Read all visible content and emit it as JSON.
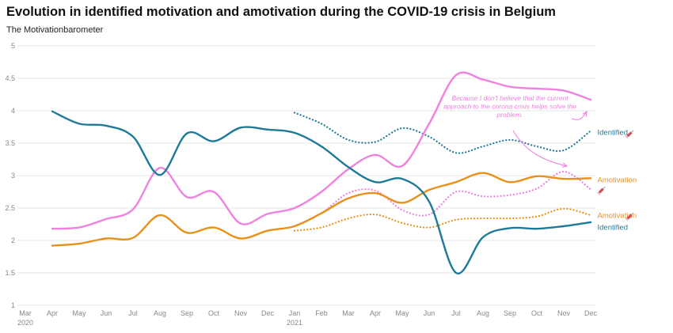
{
  "chart_data": {
    "type": "line",
    "title": "Evolution in identified motivation and amotivation during the COVID-19 crisis in Belgium",
    "subtitle": "The Motivationbarometer",
    "ylim": [
      1,
      5
    ],
    "yticks": [
      1,
      1.5,
      2,
      2.5,
      3,
      3.5,
      4,
      4.5,
      5
    ],
    "grid": true,
    "x_ticks": [
      {
        "x": 0,
        "label": "Mar",
        "sub": "2020"
      },
      {
        "x": 1,
        "label": "Apr",
        "sub": ""
      },
      {
        "x": 2,
        "label": "May",
        "sub": ""
      },
      {
        "x": 3,
        "label": "Jun",
        "sub": ""
      },
      {
        "x": 4,
        "label": "Jul",
        "sub": ""
      },
      {
        "x": 5,
        "label": "Aug",
        "sub": ""
      },
      {
        "x": 6,
        "label": "Sep",
        "sub": ""
      },
      {
        "x": 7,
        "label": "Oct",
        "sub": ""
      },
      {
        "x": 8,
        "label": "Nov",
        "sub": ""
      },
      {
        "x": 9,
        "label": "Dec",
        "sub": ""
      },
      {
        "x": 10,
        "label": "Jan",
        "sub": "2021"
      },
      {
        "x": 11,
        "label": "Feb",
        "sub": ""
      },
      {
        "x": 12,
        "label": "Mar",
        "sub": ""
      },
      {
        "x": 13,
        "label": "Apr",
        "sub": ""
      },
      {
        "x": 14,
        "label": "May",
        "sub": ""
      },
      {
        "x": 15,
        "label": "Jun",
        "sub": ""
      },
      {
        "x": 16,
        "label": "Jul",
        "sub": ""
      },
      {
        "x": 17,
        "label": "Aug",
        "sub": ""
      },
      {
        "x": 18,
        "label": "Sep",
        "sub": ""
      },
      {
        "x": 19,
        "label": "Oct",
        "sub": ""
      },
      {
        "x": 20,
        "label": "Nov",
        "sub": ""
      },
      {
        "x": 21,
        "label": "Dec",
        "sub": ""
      }
    ],
    "series": [
      {
        "key": "identified",
        "color": "#1f7a99",
        "dashed": false,
        "points": [
          [
            1,
            3.99
          ],
          [
            2,
            3.8
          ],
          [
            3,
            3.77
          ],
          [
            4,
            3.6
          ],
          [
            5,
            3.01
          ],
          [
            6,
            3.65
          ],
          [
            7,
            3.53
          ],
          [
            8,
            3.74
          ],
          [
            9,
            3.71
          ],
          [
            10,
            3.66
          ],
          [
            11,
            3.45
          ],
          [
            12,
            3.13
          ],
          [
            13,
            2.9
          ],
          [
            14,
            2.95
          ],
          [
            15,
            2.6
          ],
          [
            16,
            1.5
          ],
          [
            17,
            2.05
          ],
          [
            18,
            2.19
          ],
          [
            19,
            2.18
          ],
          [
            20,
            2.22
          ],
          [
            21,
            2.28
          ]
        ]
      },
      {
        "key": "amotivation",
        "color": "#e8901a",
        "dashed": false,
        "points": [
          [
            1,
            1.92
          ],
          [
            2,
            1.95
          ],
          [
            3,
            2.03
          ],
          [
            4,
            2.04
          ],
          [
            5,
            2.39
          ],
          [
            6,
            2.12
          ],
          [
            7,
            2.2
          ],
          [
            8,
            2.03
          ],
          [
            9,
            2.15
          ],
          [
            10,
            2.22
          ],
          [
            11,
            2.42
          ],
          [
            12,
            2.65
          ],
          [
            13,
            2.73
          ],
          [
            14,
            2.58
          ],
          [
            15,
            2.78
          ],
          [
            16,
            2.9
          ],
          [
            17,
            3.04
          ],
          [
            18,
            2.9
          ],
          [
            19,
            2.99
          ],
          [
            20,
            2.95
          ],
          [
            21,
            2.96
          ]
        ]
      },
      {
        "key": "pink",
        "color": "#ef82de",
        "dashed": false,
        "points": [
          [
            1,
            2.18
          ],
          [
            2,
            2.2
          ],
          [
            3,
            2.33
          ],
          [
            4,
            2.48
          ],
          [
            5,
            3.12
          ],
          [
            6,
            2.67
          ],
          [
            7,
            2.75
          ],
          [
            8,
            2.26
          ],
          [
            9,
            2.41
          ],
          [
            10,
            2.5
          ],
          [
            11,
            2.75
          ],
          [
            12,
            3.1
          ],
          [
            13,
            3.32
          ],
          [
            14,
            3.15
          ],
          [
            15,
            3.8
          ],
          [
            16,
            4.55
          ],
          [
            17,
            4.48
          ],
          [
            18,
            4.37
          ],
          [
            19,
            4.34
          ],
          [
            20,
            4.31
          ],
          [
            21,
            4.17
          ]
        ]
      },
      {
        "key": "identified-dotted",
        "color": "#1f7a99",
        "dashed": true,
        "points": [
          [
            10,
            3.97
          ],
          [
            11,
            3.8
          ],
          [
            12,
            3.55
          ],
          [
            13,
            3.52
          ],
          [
            14,
            3.73
          ],
          [
            15,
            3.6
          ],
          [
            16,
            3.35
          ],
          [
            17,
            3.45
          ],
          [
            18,
            3.55
          ],
          [
            19,
            3.45
          ],
          [
            20,
            3.39
          ],
          [
            21,
            3.69
          ]
        ]
      },
      {
        "key": "pink-dotted",
        "color": "#ef82de",
        "dashed": true,
        "points": [
          [
            10,
            2.22
          ],
          [
            11,
            2.42
          ],
          [
            12,
            2.73
          ],
          [
            13,
            2.77
          ],
          [
            14,
            2.47
          ],
          [
            15,
            2.4
          ],
          [
            16,
            2.75
          ],
          [
            17,
            2.68
          ],
          [
            18,
            2.7
          ],
          [
            19,
            2.8
          ],
          [
            20,
            3.06
          ],
          [
            21,
            2.79
          ]
        ]
      },
      {
        "key": "amotivation-dotted",
        "color": "#e8901a",
        "dashed": true,
        "points": [
          [
            10,
            2.15
          ],
          [
            11,
            2.2
          ],
          [
            12,
            2.34
          ],
          [
            13,
            2.4
          ],
          [
            14,
            2.27
          ],
          [
            15,
            2.2
          ],
          [
            16,
            2.32
          ],
          [
            17,
            2.34
          ],
          [
            18,
            2.34
          ],
          [
            19,
            2.37
          ],
          [
            20,
            2.49
          ],
          [
            21,
            2.39
          ]
        ]
      }
    ],
    "labels": [
      {
        "text": "Identified",
        "color": "#1f7a99",
        "x": 21.25,
        "y": 3.67
      },
      {
        "text": "Amotivation",
        "color": "#e8901a",
        "x": 21.25,
        "y": 2.94
      },
      {
        "text": "Amotivation",
        "color": "#e8901a",
        "x": 21.25,
        "y": 2.39
      },
      {
        "text": "Identified",
        "color": "#1f7a99",
        "x": 21.25,
        "y": 2.21
      }
    ],
    "vaccine_icons": [
      {
        "x": 22.45,
        "y": 3.64
      },
      {
        "x": 21.4,
        "y": 2.77
      },
      {
        "x": 22.45,
        "y": 2.37
      }
    ],
    "annotation": {
      "lines": [
        "Because I don't believe that the current",
        "approach to the corona crisis helps solve the",
        "problem."
      ],
      "color": "#ef82de",
      "x": 18,
      "y": 4.16
    }
  }
}
